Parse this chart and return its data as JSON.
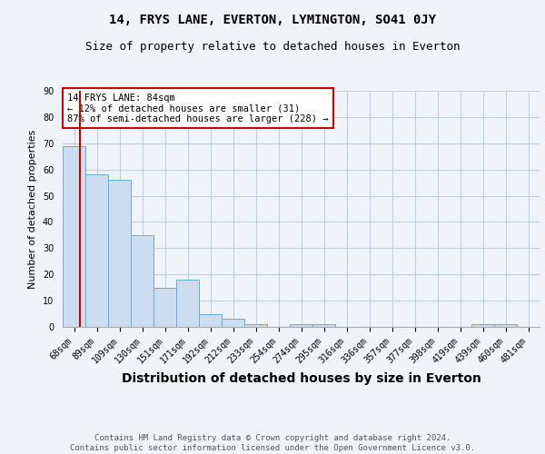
{
  "title": "14, FRYS LANE, EVERTON, LYMINGTON, SO41 0JY",
  "subtitle": "Size of property relative to detached houses in Everton",
  "xlabel": "Distribution of detached houses by size in Everton",
  "ylabel": "Number of detached properties",
  "categories": [
    "68sqm",
    "89sqm",
    "109sqm",
    "130sqm",
    "151sqm",
    "171sqm",
    "192sqm",
    "212sqm",
    "233sqm",
    "254sqm",
    "274sqm",
    "295sqm",
    "316sqm",
    "336sqm",
    "357sqm",
    "377sqm",
    "398sqm",
    "419sqm",
    "439sqm",
    "460sqm",
    "481sqm"
  ],
  "values": [
    69,
    58,
    56,
    35,
    15,
    18,
    5,
    3,
    1,
    0,
    1,
    1,
    0,
    0,
    0,
    0,
    0,
    0,
    1,
    1,
    0
  ],
  "bar_color": "#ccddf0",
  "bar_edge_color": "#6aaad4",
  "grid_color": "#c0d0e0",
  "background_color": "#f0f4f8",
  "annotation_text": "14 FRYS LANE: 84sqm\n← 12% of detached houses are smaller (31)\n87% of semi-detached houses are larger (228) →",
  "vline_color": "#cc0000",
  "annotation_box_color": "#ffffff",
  "annotation_box_edge": "#cc0000",
  "ylim": [
    0,
    90
  ],
  "yticks": [
    0,
    10,
    20,
    30,
    40,
    50,
    60,
    70,
    80,
    90
  ],
  "footer": "Contains HM Land Registry data © Crown copyright and database right 2024.\nContains public sector information licensed under the Open Government Licence v3.0.",
  "title_fontsize": 10,
  "subtitle_fontsize": 9,
  "xlabel_fontsize": 10,
  "ylabel_fontsize": 8,
  "tick_fontsize": 7,
  "annotation_fontsize": 7.5,
  "footer_fontsize": 6.5
}
